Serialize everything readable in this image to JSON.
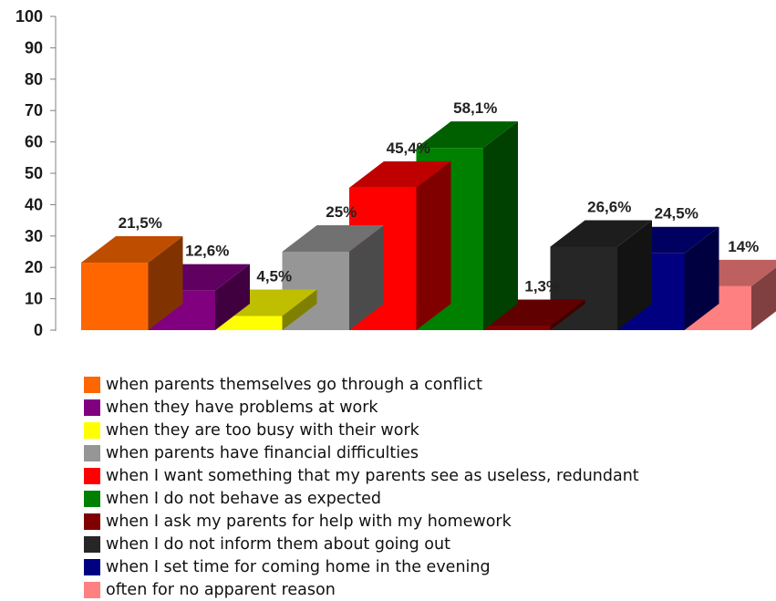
{
  "chart_data": {
    "type": "bar",
    "title": "",
    "xlabel": "",
    "ylabel": "",
    "ylim": [
      0,
      100
    ],
    "yticks": [
      "0",
      "10",
      "20",
      "30",
      "40",
      "50",
      "60",
      "70",
      "80",
      "90",
      "100"
    ],
    "legend_position": "bottom",
    "grid": false,
    "style": "3d",
    "categories": [
      "when parents themselves go through a conflict",
      "when they have problems at work",
      "when they are too busy with their work",
      "when parents have financial difficulties",
      "when I want something that my parents see as useless, redundant",
      "when I do not behave as expected",
      "when I ask my parents for help with my homework",
      "when I do not inform them about going out",
      "when I set time for coming home in the evening",
      "often for no apparent reason"
    ],
    "values": [
      21.5,
      12.6,
      4.5,
      25,
      45.4,
      58.1,
      1.3,
      26.6,
      24.5,
      14
    ],
    "data_labels": [
      "21,5%",
      "12,6%",
      "4,5%",
      "25%",
      "45,4%",
      "58,1%",
      "1,3%",
      "26,6%",
      "24,5%",
      "14%"
    ],
    "colors": [
      "#ff6600",
      "#800080",
      "#ffff00",
      "#969696",
      "#ff0000",
      "#008000",
      "#800000",
      "#262626",
      "#000080",
      "#ff8080"
    ]
  }
}
